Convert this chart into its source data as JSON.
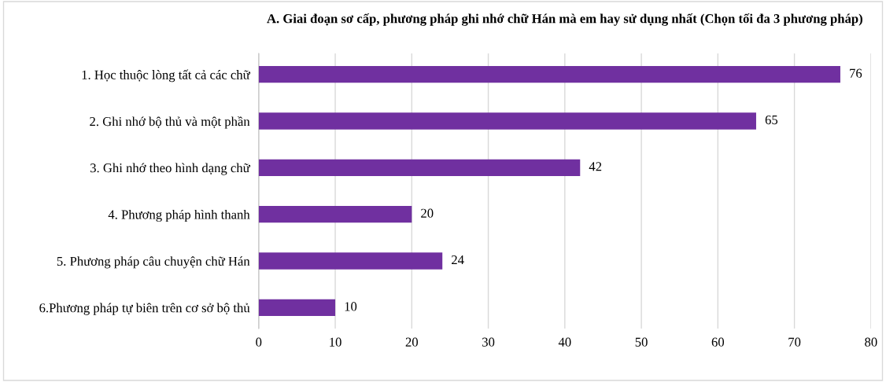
{
  "chart_data": {
    "type": "bar",
    "orientation": "horizontal",
    "title": "A. Giai đoạn sơ cấp, phương pháp ghi nhớ chữ Hán mà em hay sử dụng nhất (Chọn tối đa 3 phương pháp)",
    "categories": [
      "1. Học thuộc lòng tất cả các chữ",
      "2. Ghi nhớ bộ thủ và một phần",
      "3. Ghi nhớ theo hình dạng chữ",
      "4. Phương pháp hình thanh",
      "5. Phương pháp câu chuyện chữ Hán",
      "6.Phương pháp tự biên trên cơ sở bộ thủ"
    ],
    "values": [
      76,
      65,
      42,
      20,
      24,
      10
    ],
    "color": "#7030a0",
    "xlim": [
      0,
      80
    ],
    "xticks": [
      0,
      10,
      20,
      30,
      40,
      50,
      60,
      70,
      80
    ],
    "grid": "x",
    "data_labels": true
  }
}
